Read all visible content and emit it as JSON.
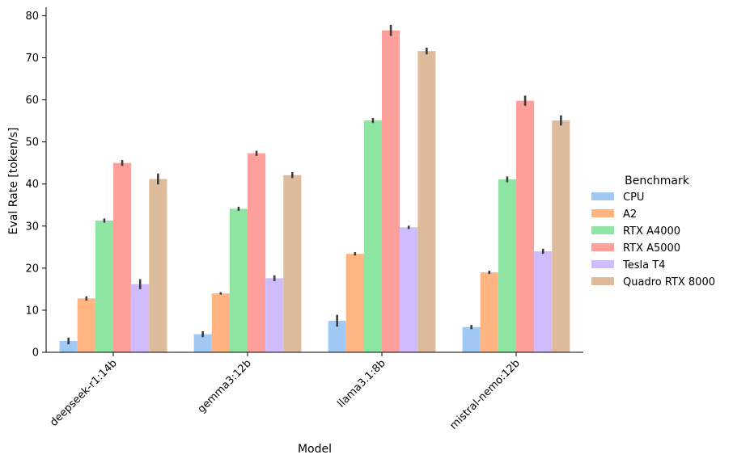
{
  "chart_data": {
    "type": "bar",
    "xlabel": "Model",
    "ylabel": "Eval Rate [token/s]",
    "ylim": [
      0,
      82
    ],
    "yticks": [
      0,
      10,
      20,
      30,
      40,
      50,
      60,
      70,
      80
    ],
    "categories": [
      "deepseek-r1:14b",
      "gemma3:12b",
      "llama3.1:8b",
      "mistral-nemo:12b"
    ],
    "legend": {
      "title": "Benchmark",
      "position": "right"
    },
    "grid": false,
    "series": [
      {
        "name": "CPU",
        "color": "#a1c9f4",
        "values": [
          2.7,
          4.3,
          7.5,
          6.0
        ],
        "err": [
          0.8,
          0.7,
          1.4,
          0.5
        ]
      },
      {
        "name": "A2",
        "color": "#ffb482",
        "values": [
          12.8,
          14.0,
          23.4,
          19.0
        ],
        "err": [
          0.5,
          0.3,
          0.4,
          0.4
        ]
      },
      {
        "name": "RTX A4000",
        "color": "#8de5a1",
        "values": [
          31.3,
          34.1,
          55.1,
          41.1
        ],
        "err": [
          0.5,
          0.5,
          0.6,
          0.7
        ]
      },
      {
        "name": "RTX A5000",
        "color": "#ff9f9b",
        "values": [
          45.0,
          47.3,
          76.5,
          59.8
        ],
        "err": [
          0.7,
          0.6,
          1.3,
          1.2
        ]
      },
      {
        "name": "Tesla T4",
        "color": "#d0bbff",
        "values": [
          16.2,
          17.6,
          29.7,
          24.0
        ],
        "err": [
          1.2,
          0.7,
          0.4,
          0.6
        ]
      },
      {
        "name": "Quadro RTX 8000",
        "color": "#debb9b",
        "values": [
          41.2,
          42.1,
          71.6,
          55.1
        ],
        "err": [
          1.3,
          0.7,
          0.8,
          1.2
        ]
      }
    ]
  }
}
